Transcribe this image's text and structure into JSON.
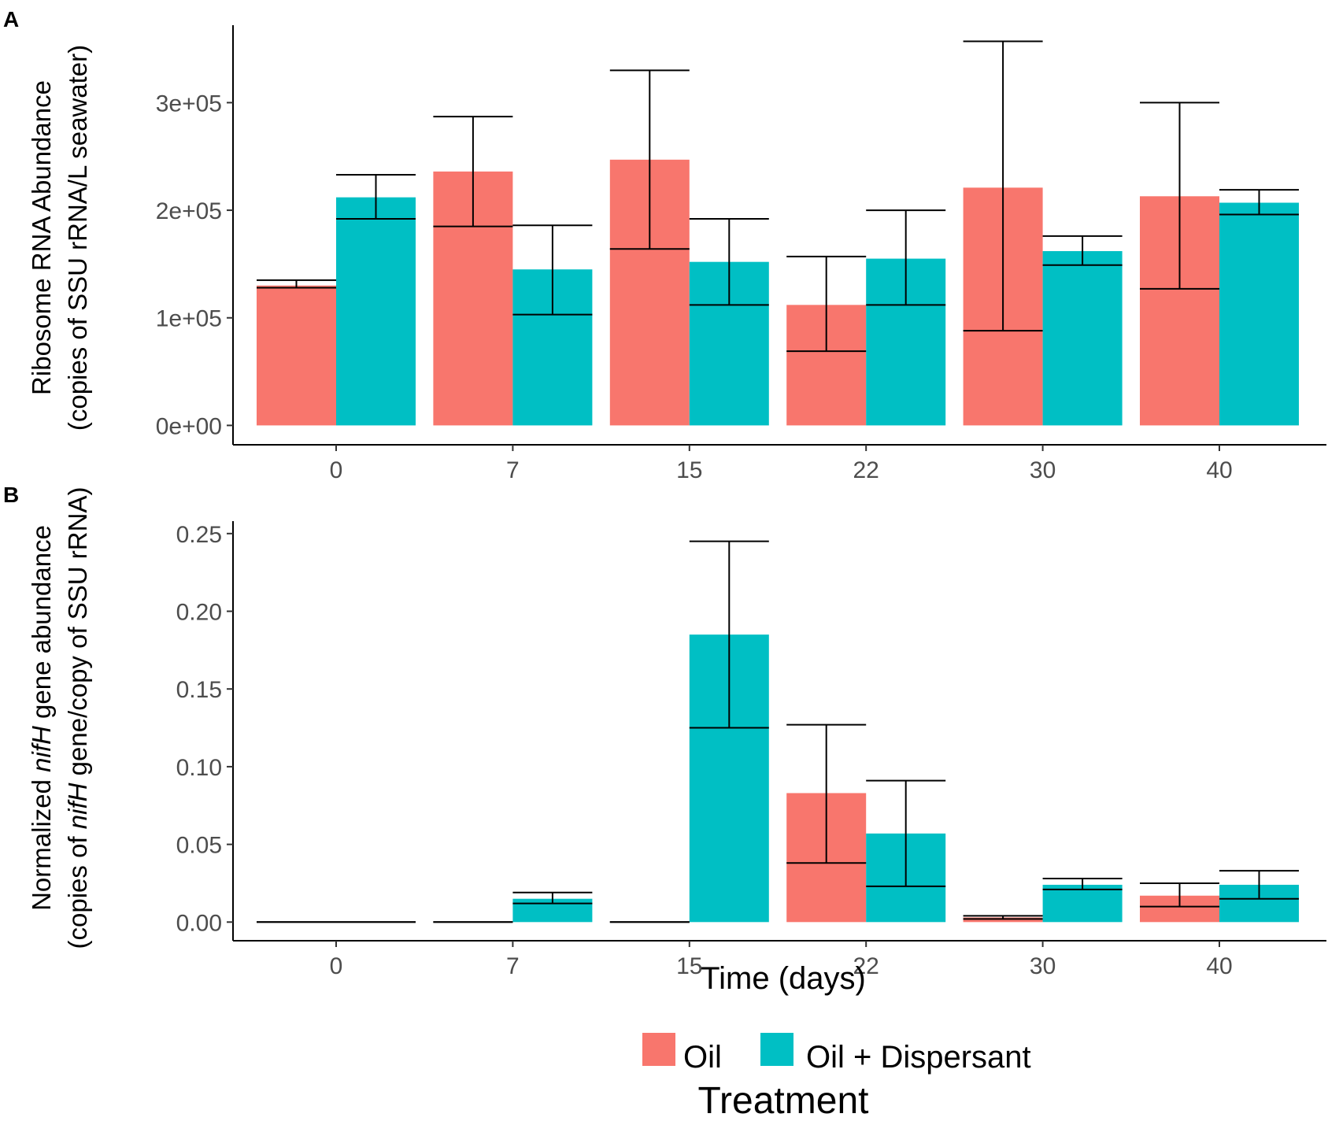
{
  "chart_data": [
    {
      "panel": "A",
      "type": "bar",
      "categories": [
        "0",
        "7",
        "15",
        "22",
        "30",
        "40"
      ],
      "series": [
        {
          "name": "Oil",
          "color": "#F8766D",
          "values": [
            130000,
            236000,
            247000,
            112000,
            221000,
            213000
          ],
          "error_low": [
            128000,
            185000,
            164000,
            69000,
            88000,
            127000
          ],
          "error_high": [
            135000,
            287000,
            330000,
            157000,
            357000,
            300000
          ]
        },
        {
          "name": "Oil + Dispersant",
          "color": "#00BFC4",
          "values": [
            212000,
            145000,
            152000,
            155000,
            162000,
            207000
          ],
          "error_low": [
            192000,
            103000,
            112000,
            112000,
            149000,
            196000
          ],
          "error_high": [
            233000,
            186000,
            192000,
            200000,
            176000,
            219000
          ]
        }
      ],
      "ylim": [
        -18000,
        372000
      ],
      "yticks": [
        0,
        100000,
        200000,
        300000
      ],
      "yticklabels": [
        "0e+00",
        "1e+05",
        "2e+05",
        "3e+05"
      ],
      "ylabel_lines": [
        "Ribosome RNA Abundance",
        "(copies of SSU rRNA/L seawater)"
      ],
      "xlabel": ""
    },
    {
      "panel": "B",
      "type": "bar",
      "categories": [
        "0",
        "7",
        "15",
        "22",
        "30",
        "40"
      ],
      "series": [
        {
          "name": "Oil",
          "color": "#F8766D",
          "values": [
            0,
            0,
            0,
            0.083,
            0.003,
            0.017
          ],
          "error_low": [
            0,
            0,
            0,
            0.038,
            0.002,
            0.01
          ],
          "error_high": [
            0,
            0,
            0,
            0.127,
            0.004,
            0.025
          ]
        },
        {
          "name": "Oil + Dispersant",
          "color": "#00BFC4",
          "values": [
            0,
            0.015,
            0.185,
            0.057,
            0.024,
            0.024
          ],
          "error_low": [
            0,
            0.012,
            0.125,
            0.023,
            0.021,
            0.015
          ],
          "error_high": [
            0,
            0.019,
            0.245,
            0.091,
            0.028,
            0.033
          ]
        }
      ],
      "ylim": [
        -0.012,
        0.258
      ],
      "yticks": [
        0,
        0.05,
        0.1,
        0.15,
        0.2,
        0.25
      ],
      "yticklabels": [
        "0.00",
        "0.05",
        "0.10",
        "0.15",
        "0.20",
        "0.25"
      ],
      "ylabel_line1": {
        "pre": "Normalized ",
        "italic": "nifH",
        "post": " gene abundance"
      },
      "ylabel_line2": {
        "pre": "(copies of ",
        "italic": "nifH",
        "post": " gene/copy of SSU rRNA)"
      },
      "xlabel": "Time (days)"
    }
  ],
  "figure": {
    "panel_a_label": "A",
    "panel_b_label": "B"
  },
  "legend": {
    "title": "Treatment",
    "items": [
      {
        "label": "Oil",
        "color": "#F8766D"
      },
      {
        "label": "Oil + Dispersant",
        "color": "#00BFC4"
      }
    ]
  }
}
